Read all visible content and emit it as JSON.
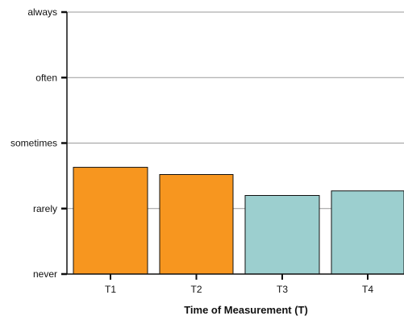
{
  "chart_data": {
    "type": "bar",
    "title": "",
    "xlabel": "Time of Measurement (T)",
    "ylabel": "",
    "categories": [
      "T1",
      "T2",
      "T3",
      "T4"
    ],
    "values": [
      1.63,
      1.52,
      1.2,
      1.27
    ],
    "y_ticks": [
      {
        "value": 0,
        "label": "never"
      },
      {
        "value": 1,
        "label": "rarely"
      },
      {
        "value": 2,
        "label": "sometimes"
      },
      {
        "value": 3,
        "label": "often"
      },
      {
        "value": 4,
        "label": "always"
      }
    ],
    "ylim": [
      0,
      4
    ],
    "grid": true,
    "bar_colors": [
      "#F7961F",
      "#F7961F",
      "#9CCFCF",
      "#9CCFCF"
    ],
    "colors": {
      "orange": "#F7961F",
      "teal": "#9CCFCF",
      "bar_edge": "#111111",
      "grid": "#9a9a9a",
      "axis": "#111111"
    }
  }
}
